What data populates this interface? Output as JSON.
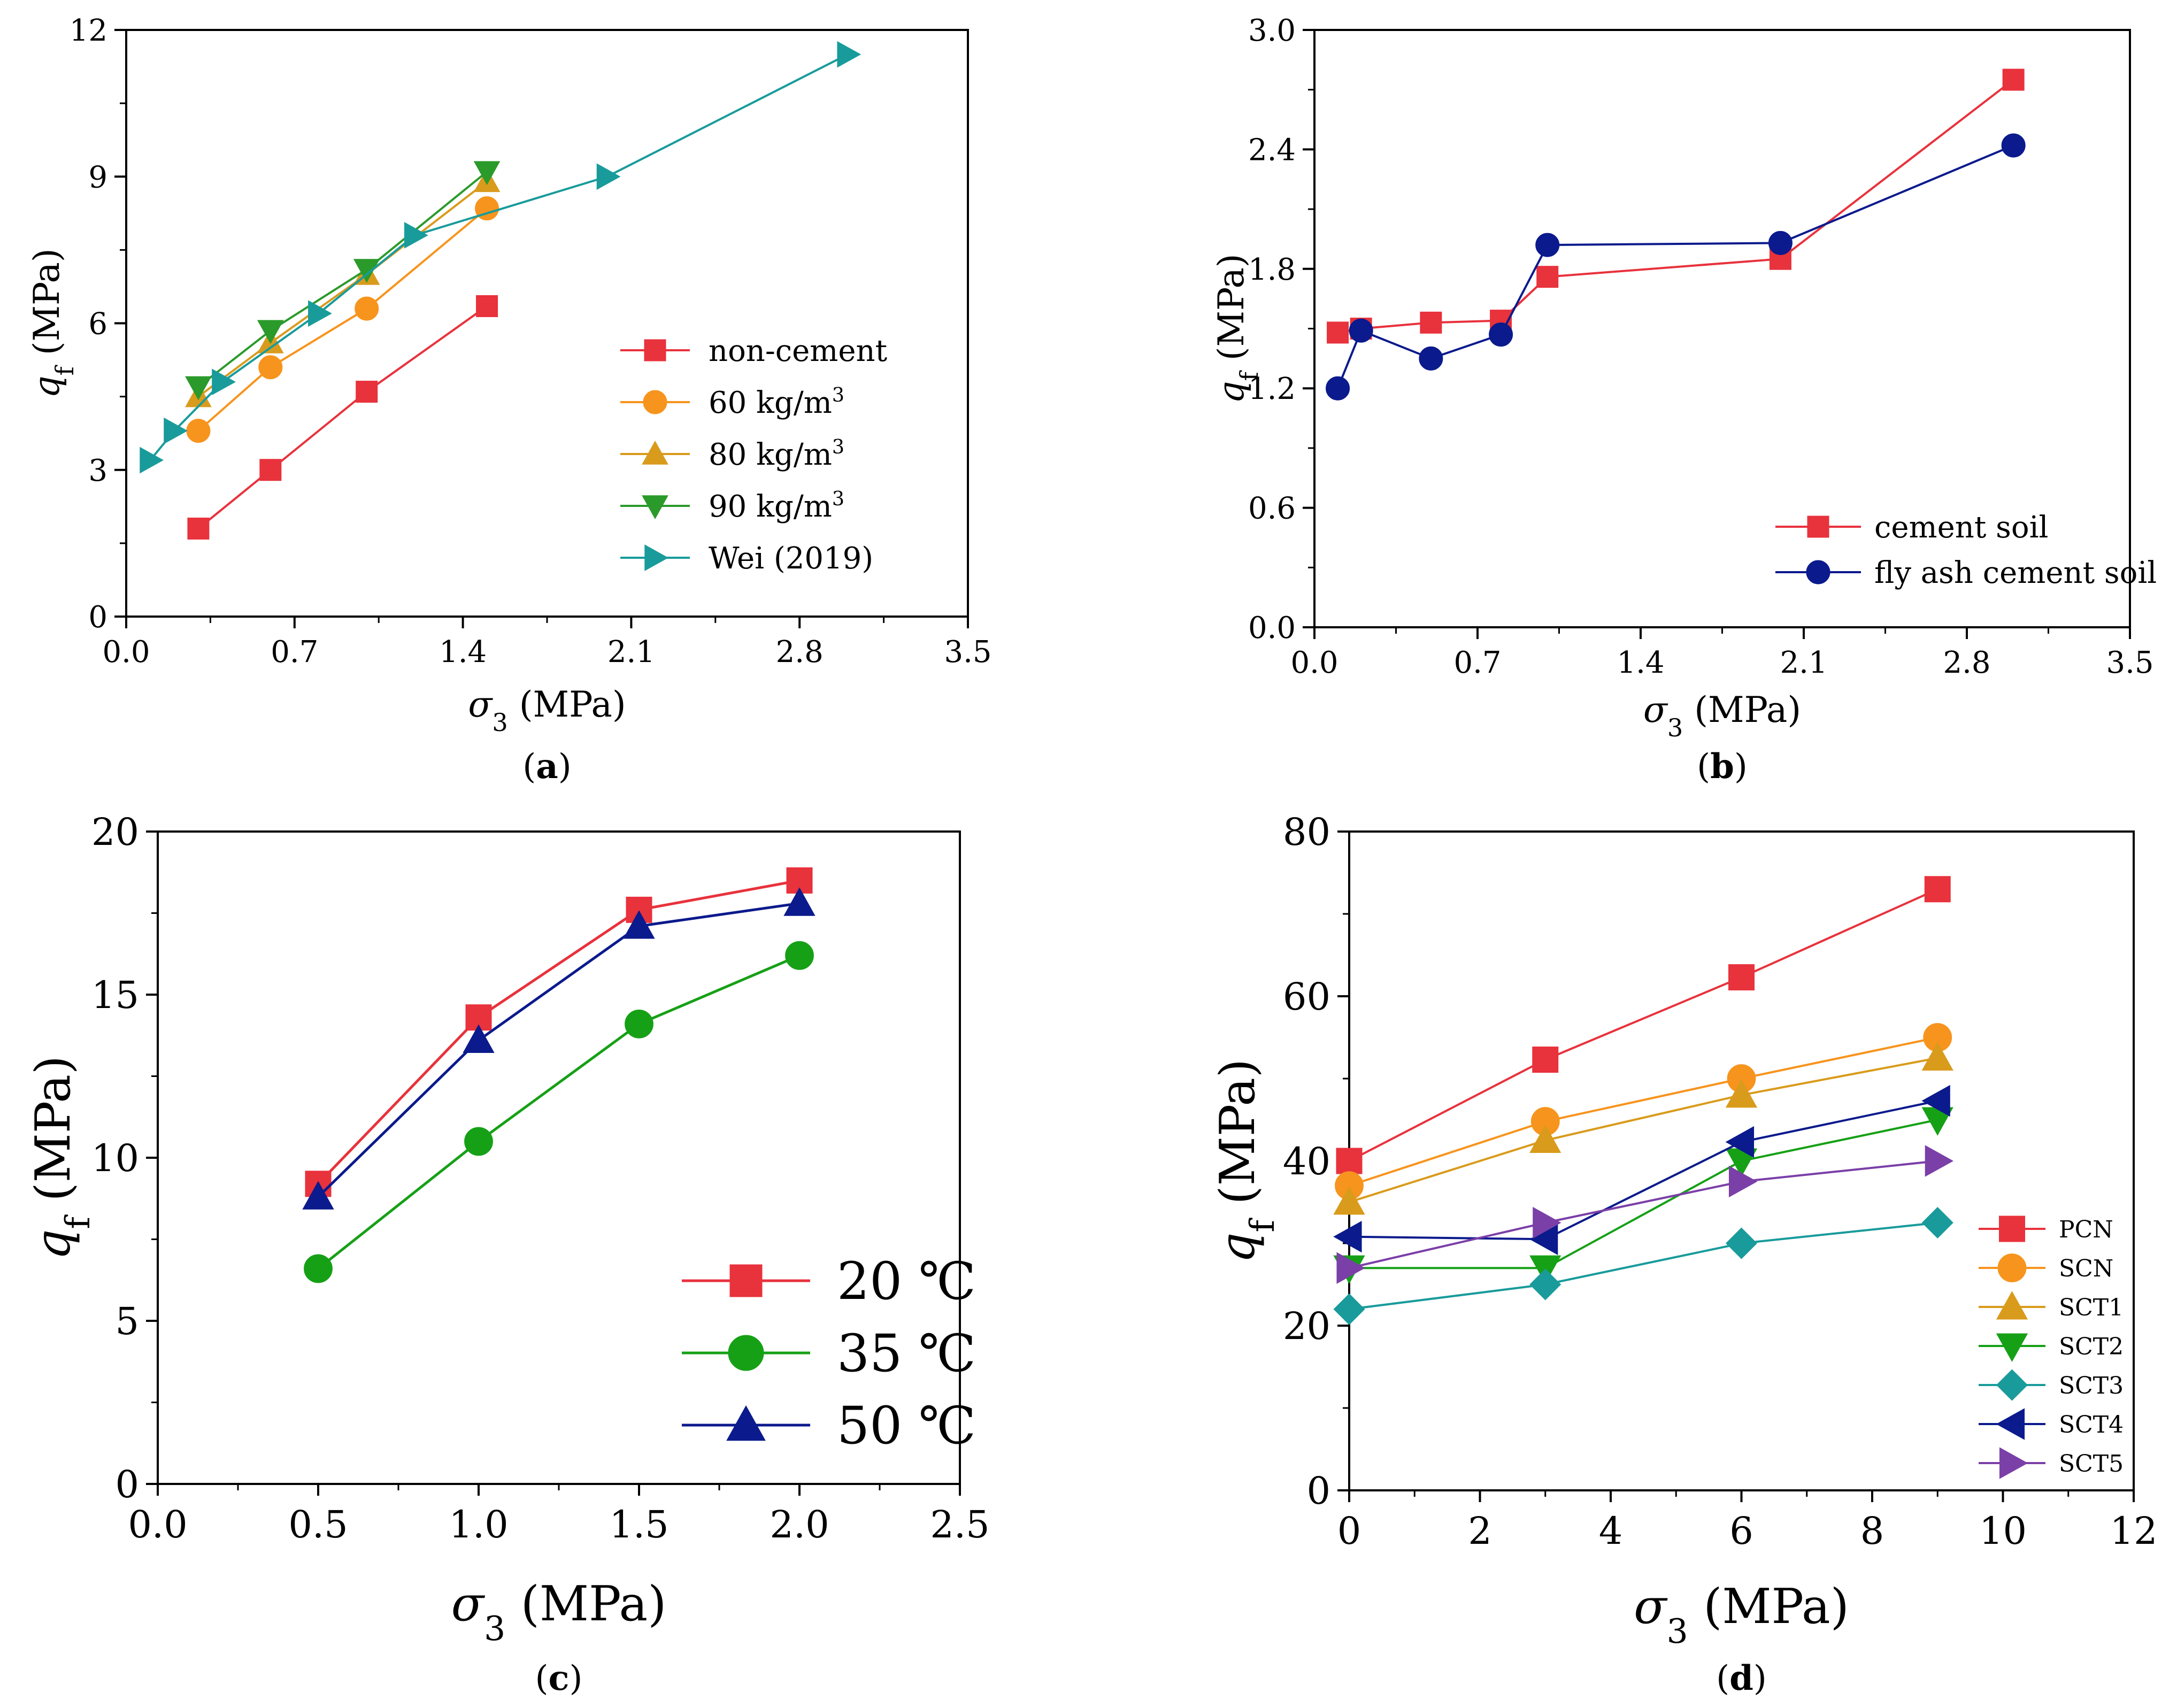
{
  "chart_data": [
    {
      "type": "line",
      "panel": "(a)",
      "caption_letter": "a",
      "xlabel": "σ3 (MPa)",
      "xlabel_symbol": "σ",
      "xlabel_sub": "3",
      "xlabel_unit": " (MPa)",
      "ylabel": "qf (MPa)",
      "ylabel_symbol": "q",
      "ylabel_sub": "f",
      "ylabel_unit": " (MPa)",
      "xlim": [
        0.0,
        3.5
      ],
      "ylim": [
        0,
        12
      ],
      "xticks": [
        "0.0",
        "0.7",
        "1.4",
        "2.1",
        "2.8",
        "3.5"
      ],
      "yticks": [
        "0",
        "3",
        "6",
        "9",
        "12"
      ],
      "legend_position": "center-right",
      "series": [
        {
          "name": "non-cement",
          "color": "#e8323c",
          "marker": "square",
          "x": [
            0.3,
            0.6,
            1.0,
            1.5
          ],
          "y": [
            1.8,
            3.0,
            4.6,
            6.35
          ]
        },
        {
          "name": "60 kg/m3",
          "name_base": "60 kg/m",
          "name_sup": "3",
          "color": "#f7941d",
          "marker": "circle",
          "x": [
            0.3,
            0.6,
            1.0,
            1.5
          ],
          "y": [
            3.8,
            5.1,
            6.3,
            8.35
          ]
        },
        {
          "name": "80 kg/m3",
          "name_base": "80 kg/m",
          "name_sup": "3",
          "color": "#d99b1c",
          "marker": "triangle-up",
          "x": [
            0.3,
            0.6,
            1.0,
            1.5
          ],
          "y": [
            4.5,
            5.6,
            7.0,
            8.9
          ]
        },
        {
          "name": "90 kg/m3",
          "name_base": "90 kg/m",
          "name_sup": "3",
          "color": "#2a9a2a",
          "marker": "triangle-down",
          "x": [
            0.3,
            0.6,
            1.0,
            1.5
          ],
          "y": [
            4.7,
            5.85,
            7.1,
            9.1
          ]
        },
        {
          "name": "Wei (2019)",
          "color": "#199b9b",
          "marker": "triangle-right",
          "x": [
            0.1,
            0.2,
            0.4,
            0.8,
            1.2,
            2.0,
            3.0
          ],
          "y": [
            3.2,
            3.8,
            4.8,
            6.2,
            7.8,
            9.0,
            11.5
          ]
        }
      ]
    },
    {
      "type": "line",
      "panel": "(b)",
      "caption_letter": "b",
      "xlabel": "σ3 (MPa)",
      "xlabel_symbol": "σ",
      "xlabel_sub": "3",
      "xlabel_unit": " (MPa)",
      "ylabel": "qf (MPa)",
      "ylabel_symbol": "q",
      "ylabel_sub": "f",
      "ylabel_unit": " (MPa)",
      "xlim": [
        0.0,
        3.5
      ],
      "ylim": [
        0.0,
        3.0
      ],
      "xticks": [
        "0.0",
        "0.7",
        "1.4",
        "2.1",
        "2.8",
        "3.5"
      ],
      "yticks": [
        "0.0",
        "0.6",
        "1.2",
        "1.8",
        "2.4",
        "3.0"
      ],
      "legend_position": "bottom-right",
      "series": [
        {
          "name": "cement soil",
          "color": "#e8323c",
          "marker": "square",
          "x": [
            0.1,
            0.2,
            0.5,
            0.8,
            1.0,
            2.0,
            3.0
          ],
          "y": [
            1.48,
            1.5,
            1.53,
            1.54,
            1.76,
            1.85,
            2.75
          ]
        },
        {
          "name": "fly ash cement soil",
          "color": "#0b1a8c",
          "marker": "circle",
          "x": [
            0.1,
            0.2,
            0.5,
            0.8,
            1.0,
            2.0,
            3.0
          ],
          "y": [
            1.2,
            1.49,
            1.35,
            1.47,
            1.92,
            1.93,
            2.42
          ]
        }
      ]
    },
    {
      "type": "line",
      "panel": "(c)",
      "caption_letter": "c",
      "xlabel": "σ3 (MPa)",
      "xlabel_symbol": "σ",
      "xlabel_sub": "3",
      "xlabel_unit": " (MPa)",
      "ylabel": "qf (MPa)",
      "ylabel_symbol": "q",
      "ylabel_sub": "f",
      "ylabel_unit": " (MPa)",
      "xlim": [
        0.0,
        2.5
      ],
      "ylim": [
        0,
        20
      ],
      "xticks": [
        "0.0",
        "0.5",
        "1.0",
        "1.5",
        "2.0",
        "2.5"
      ],
      "yticks": [
        "0",
        "5",
        "10",
        "15",
        "20"
      ],
      "legend_position": "bottom-right",
      "series": [
        {
          "name": "20 ℃",
          "color": "#e8323c",
          "marker": "square",
          "x": [
            0.5,
            1.0,
            1.5,
            2.0
          ],
          "y": [
            9.2,
            14.3,
            17.6,
            18.5
          ]
        },
        {
          "name": "35 ℃",
          "color": "#16a016",
          "marker": "circle",
          "x": [
            0.5,
            1.0,
            1.5,
            2.0
          ],
          "y": [
            6.6,
            10.5,
            14.1,
            16.2
          ]
        },
        {
          "name": "50 ℃",
          "color": "#0b1a8c",
          "marker": "triangle-up",
          "x": [
            0.5,
            1.0,
            1.5,
            2.0
          ],
          "y": [
            8.8,
            13.6,
            17.1,
            17.8
          ]
        }
      ]
    },
    {
      "type": "line",
      "panel": "(d)",
      "caption_letter": "d",
      "xlabel": "σ3 (MPa)",
      "xlabel_symbol": "σ",
      "xlabel_sub": "3",
      "xlabel_unit": " (MPa)",
      "ylabel": "qf (MPa)",
      "ylabel_symbol": "q",
      "ylabel_sub": "f",
      "ylabel_unit": " (MPa)",
      "xlim": [
        0,
        12
      ],
      "ylim": [
        0,
        80
      ],
      "xticks": [
        "0",
        "2",
        "4",
        "6",
        "8",
        "10",
        "12"
      ],
      "yticks": [
        "0",
        "20",
        "40",
        "60",
        "80"
      ],
      "legend_position": "bottom-right",
      "series": [
        {
          "name": "PCN",
          "color": "#e8323c",
          "marker": "square",
          "x": [
            0,
            3,
            6,
            9
          ],
          "y": [
            40,
            52.3,
            62.3,
            73
          ]
        },
        {
          "name": "SCN",
          "color": "#f7941d",
          "marker": "circle",
          "x": [
            0,
            3,
            6,
            9
          ],
          "y": [
            37,
            44.8,
            50,
            55
          ]
        },
        {
          "name": "SCT1",
          "color": "#d99b1c",
          "marker": "triangle-up",
          "x": [
            0,
            3,
            6,
            9
          ],
          "y": [
            35,
            42.5,
            48,
            52.5
          ]
        },
        {
          "name": "SCT2",
          "color": "#16a016",
          "marker": "triangle-down",
          "x": [
            0,
            3,
            6,
            9
          ],
          "y": [
            27,
            27,
            40,
            45
          ]
        },
        {
          "name": "SCT3",
          "color": "#199b9b",
          "marker": "diamond",
          "x": [
            0,
            3,
            6,
            9
          ],
          "y": [
            22,
            25,
            30,
            32.5
          ]
        },
        {
          "name": "SCT4",
          "color": "#0b1a8c",
          "marker": "triangle-left",
          "x": [
            0,
            3,
            6,
            9
          ],
          "y": [
            30.8,
            30.5,
            42.3,
            47.3
          ]
        },
        {
          "name": "SCT5",
          "color": "#7b3fa8",
          "marker": "triangle-right",
          "x": [
            0,
            3,
            6,
            9
          ],
          "y": [
            27,
            32.5,
            37.5,
            40
          ]
        }
      ]
    }
  ]
}
